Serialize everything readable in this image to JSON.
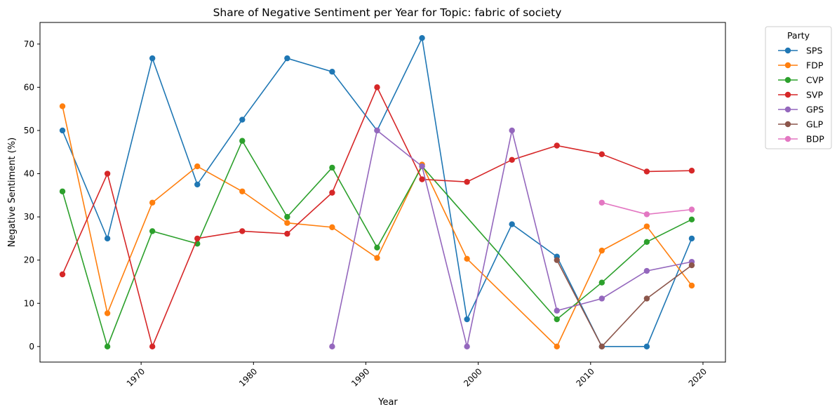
{
  "chart_data": {
    "type": "line",
    "title": "Share of Negative Sentiment per Year for Topic: fabric of society",
    "xlabel": "Year",
    "ylabel": "Negative Sentiment (%)",
    "xlim": [
      1961,
      2022
    ],
    "ylim": [
      -3.6,
      75
    ],
    "xticks": [
      1970,
      1980,
      1990,
      2000,
      2010,
      2020
    ],
    "yticks": [
      0,
      10,
      20,
      30,
      40,
      50,
      60,
      70
    ],
    "grid": false,
    "legend": {
      "title": "Party",
      "placement": "outside-top-right"
    },
    "series": [
      {
        "name": "SPS",
        "color": "#1f77b4",
        "points": [
          [
            1963,
            50.0
          ],
          [
            1967,
            25.0
          ],
          [
            1971,
            66.7
          ],
          [
            1975,
            37.5
          ],
          [
            1979,
            52.5
          ],
          [
            1983,
            66.7
          ],
          [
            1987,
            63.6
          ],
          [
            1991,
            50.0
          ],
          [
            1995,
            71.4
          ],
          [
            1999,
            6.3
          ],
          [
            2003,
            28.3
          ],
          [
            2007,
            20.8
          ],
          [
            2011,
            0
          ],
          [
            2015,
            0
          ],
          [
            2019,
            25.0
          ]
        ]
      },
      {
        "name": "FDP",
        "color": "#ff7f0e",
        "points": [
          [
            1963,
            55.6
          ],
          [
            1967,
            7.7
          ],
          [
            1971,
            33.3
          ],
          [
            1975,
            41.7
          ],
          [
            1979,
            35.9
          ],
          [
            1983,
            28.6
          ],
          [
            1987,
            27.6
          ],
          [
            1991,
            20.5
          ],
          [
            1995,
            42.1
          ],
          [
            1999,
            20.3
          ],
          [
            2007,
            0
          ],
          [
            2011,
            22.2
          ],
          [
            2015,
            27.8
          ],
          [
            2019,
            14.1
          ]
        ]
      },
      {
        "name": "CVP",
        "color": "#2ca02c",
        "points": [
          [
            1963,
            35.9
          ],
          [
            1967,
            0
          ],
          [
            1971,
            26.7
          ],
          [
            1975,
            23.8
          ],
          [
            1979,
            47.6
          ],
          [
            1983,
            30.0
          ],
          [
            1987,
            41.4
          ],
          [
            1991,
            22.9
          ],
          [
            1995,
            41.7
          ],
          [
            2007,
            6.3
          ],
          [
            2011,
            14.8
          ],
          [
            2015,
            24.2
          ],
          [
            2019,
            29.4
          ]
        ]
      },
      {
        "name": "SVP",
        "color": "#d62728",
        "points": [
          [
            1963,
            16.7
          ],
          [
            1967,
            40.0
          ],
          [
            1971,
            0
          ],
          [
            1975,
            25.0
          ],
          [
            1979,
            26.7
          ],
          [
            1983,
            26.1
          ],
          [
            1987,
            35.6
          ],
          [
            1991,
            60.0
          ],
          [
            1995,
            38.7
          ],
          [
            1999,
            38.1
          ],
          [
            2003,
            43.2
          ],
          [
            2007,
            46.5
          ],
          [
            2011,
            44.5
          ],
          [
            2015,
            40.5
          ],
          [
            2019,
            40.7
          ]
        ]
      },
      {
        "name": "GPS",
        "color": "#9467bd",
        "points": [
          [
            1987,
            0
          ],
          [
            1991,
            50.0
          ],
          [
            1995,
            41.7
          ],
          [
            1999,
            0
          ],
          [
            2003,
            50.0
          ],
          [
            2007,
            8.3
          ],
          [
            2011,
            11.1
          ],
          [
            2015,
            17.5
          ],
          [
            2019,
            19.6
          ]
        ]
      },
      {
        "name": "GLP",
        "color": "#8c564b",
        "points": [
          [
            2007,
            20.0
          ],
          [
            2011,
            0
          ],
          [
            2015,
            11.1
          ],
          [
            2019,
            18.8
          ]
        ]
      },
      {
        "name": "BDP",
        "color": "#e377c2",
        "points": [
          [
            2011,
            33.3
          ],
          [
            2015,
            30.6
          ],
          [
            2019,
            31.7
          ]
        ]
      }
    ]
  }
}
